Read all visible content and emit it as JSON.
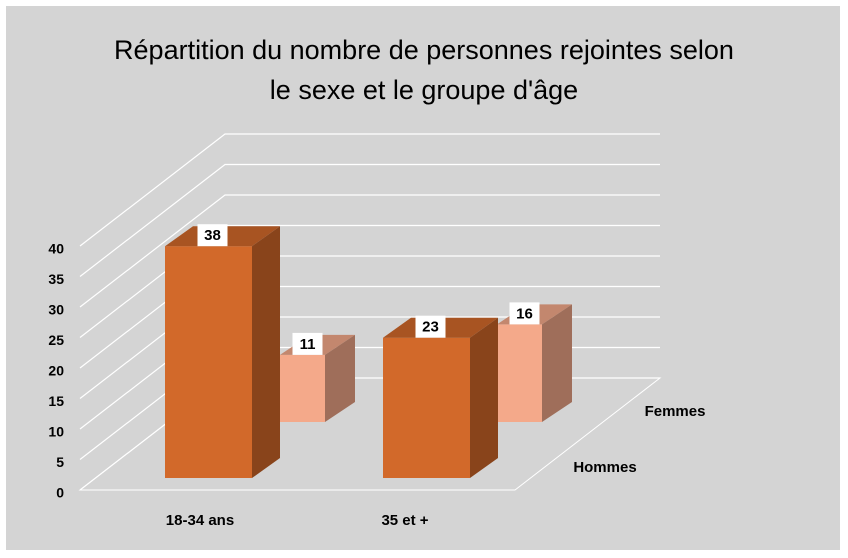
{
  "chart_data": {
    "type": "bar3d",
    "title": [
      "Répartition du nombre de personnes rejointes selon",
      "le sexe et le groupe d'âge"
    ],
    "categories": [
      "18-34 ans",
      "35 et +"
    ],
    "series": [
      {
        "name": "Hommes",
        "color": "#d2692a",
        "values": [
          38,
          23
        ]
      },
      {
        "name": "Femmes",
        "color": "#f4a98a",
        "values": [
          11,
          16
        ]
      }
    ],
    "ylim": [
      0,
      40
    ],
    "yticks": [
      0,
      5,
      10,
      15,
      20,
      25,
      30,
      35,
      40
    ],
    "grid": true
  }
}
